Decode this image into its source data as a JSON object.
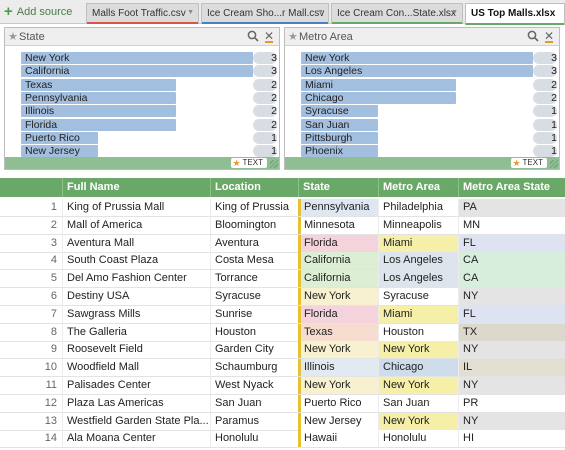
{
  "tabs": {
    "add_source_label": "Add source",
    "files": [
      {
        "label": "Malls Foot Traffic.csv",
        "stripe": "#d9534f",
        "active": false
      },
      {
        "label": "Ice Cream Sho...r Mall.csv",
        "stripe": "#4a7fc4",
        "active": false
      },
      {
        "label": "Ice Cream Con...State.xlsx",
        "stripe": "#6aa867",
        "active": false
      },
      {
        "label": "US Top Malls.xlsx",
        "stripe": "#6aa867",
        "active": true
      }
    ]
  },
  "filters": [
    {
      "title": "State",
      "items": [
        {
          "name": "New York",
          "count": "3",
          "frac": 1.0
        },
        {
          "name": "California",
          "count": "3",
          "frac": 1.0
        },
        {
          "name": "Texas",
          "count": "2",
          "frac": 0.67
        },
        {
          "name": "Pennsylvania",
          "count": "2",
          "frac": 0.67
        },
        {
          "name": "Illinois",
          "count": "2",
          "frac": 0.67
        },
        {
          "name": "Florida",
          "count": "2",
          "frac": 0.67
        },
        {
          "name": "Puerto Rico",
          "count": "1",
          "frac": 0.33
        },
        {
          "name": "New Jersey",
          "count": "1",
          "frac": 0.33
        }
      ],
      "footer_button": "TEXT"
    },
    {
      "title": "Metro Area",
      "items": [
        {
          "name": "New York",
          "count": "3",
          "frac": 1.0
        },
        {
          "name": "Los Angeles",
          "count": "3",
          "frac": 1.0
        },
        {
          "name": "Miami",
          "count": "2",
          "frac": 0.67
        },
        {
          "name": "Chicago",
          "count": "2",
          "frac": 0.67
        },
        {
          "name": "Syracuse",
          "count": "1",
          "frac": 0.33
        },
        {
          "name": "San Juan",
          "count": "1",
          "frac": 0.33
        },
        {
          "name": "Pittsburgh",
          "count": "1",
          "frac": 0.33
        },
        {
          "name": "Phoenix",
          "count": "1",
          "frac": 0.33
        }
      ],
      "footer_button": "TEXT"
    }
  ],
  "table": {
    "columns": [
      "Full Name",
      "Location",
      "State",
      "Metro Area",
      "Metro Area State"
    ],
    "rows": [
      {
        "n": "1",
        "name": "King of Prussia Mall",
        "loc": "King of Prussia",
        "state": "Pennsylvania",
        "metro": "Philadelphia",
        "mstate": "PA",
        "scol": "#dfe8f2",
        "mcol": "#ffffff",
        "mscol": "#e4e4e4"
      },
      {
        "n": "2",
        "name": "Mall of America",
        "loc": "Bloomington",
        "state": "Minnesota",
        "metro": "Minneapolis",
        "mstate": "MN",
        "scol": "#ffffff",
        "mcol": "#ffffff",
        "mscol": "#ffffff"
      },
      {
        "n": "3",
        "name": "Aventura Mall",
        "loc": "Aventura",
        "state": "Florida",
        "metro": "Miami",
        "mstate": "FL",
        "scol": "#f5d3dc",
        "mcol": "#f5efa8",
        "mscol": "#dde3f1"
      },
      {
        "n": "4",
        "name": "South Coast Plaza",
        "loc": "Costa Mesa",
        "state": "California",
        "metro": "Los Angeles",
        "mstate": "CA",
        "scol": "#dcefd5",
        "mcol": "#dde4ec",
        "mscol": "#d8eedd"
      },
      {
        "n": "5",
        "name": "Del Amo Fashion Center",
        "loc": "Torrance",
        "state": "California",
        "metro": "Los Angeles",
        "mstate": "CA",
        "scol": "#dcefd5",
        "mcol": "#dde4ec",
        "mscol": "#d8eedd"
      },
      {
        "n": "6",
        "name": "Destiny USA",
        "loc": "Syracuse",
        "state": "New York",
        "metro": "Syracuse",
        "mstate": "NY",
        "scol": "#f7f1cf",
        "mcol": "#ffffff",
        "mscol": "#e4e4e4"
      },
      {
        "n": "7",
        "name": "Sawgrass Mills",
        "loc": "Sunrise",
        "state": "Florida",
        "metro": "Miami",
        "mstate": "FL",
        "scol": "#f5d3dc",
        "mcol": "#f5efa8",
        "mscol": "#dde3f1"
      },
      {
        "n": "8",
        "name": "The Galleria",
        "loc": "Houston",
        "state": "Texas",
        "metro": "Houston",
        "mstate": "TX",
        "scol": "#f6ddd0",
        "mcol": "#ffffff",
        "mscol": "#ddd8cc"
      },
      {
        "n": "9",
        "name": "Roosevelt Field",
        "loc": "Garden City",
        "state": "New York",
        "metro": "New York",
        "mstate": "NY",
        "scol": "#f7f1cf",
        "mcol": "#f5efa8",
        "mscol": "#e4e4e4"
      },
      {
        "n": "10",
        "name": "Woodfield Mall",
        "loc": "Schaumburg",
        "state": "Illinois",
        "metro": "Chicago",
        "mstate": "IL",
        "scol": "#e2eaf1",
        "mcol": "#cfdcec",
        "mscol": "#e3ded2"
      },
      {
        "n": "11",
        "name": "Palisades Center",
        "loc": "West Nyack",
        "state": "New York",
        "metro": "New York",
        "mstate": "NY",
        "scol": "#f7f1cf",
        "mcol": "#f5efa8",
        "mscol": "#e4e4e4"
      },
      {
        "n": "12",
        "name": "Plaza Las Americas",
        "loc": "San Juan",
        "state": "Puerto Rico",
        "metro": "San Juan",
        "mstate": "PR",
        "scol": "#ffffff",
        "mcol": "#ffffff",
        "mscol": "#ffffff"
      },
      {
        "n": "13",
        "name": "Westfield Garden State Pla...",
        "loc": "Paramus",
        "state": "New Jersey",
        "metro": "New York",
        "mstate": "NY",
        "scol": "#ffffff",
        "mcol": "#f5efa8",
        "mscol": "#e4e4e4"
      },
      {
        "n": "14",
        "name": "Ala Moana Center",
        "loc": "Honolulu",
        "state": "Hawaii",
        "metro": "Honolulu",
        "mstate": "HI",
        "scol": "#ffffff",
        "mcol": "#ffffff",
        "mscol": "#ffffff"
      }
    ]
  }
}
